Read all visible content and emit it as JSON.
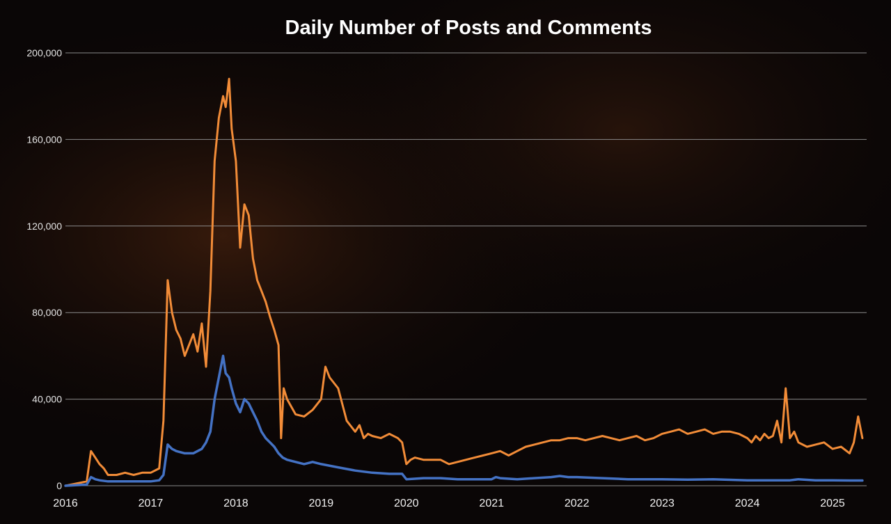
{
  "chart_data": {
    "type": "line",
    "title": "Daily Number of Posts and Comments",
    "xlabel": "",
    "ylabel": "",
    "xlim": [
      2016.0,
      2025.4
    ],
    "ylim": [
      0,
      200000
    ],
    "y_ticks": [
      0,
      40000,
      80000,
      120000,
      160000,
      200000
    ],
    "y_tick_labels": [
      "0",
      "40,000",
      "80,000",
      "120,000",
      "160,000",
      "200,000"
    ],
    "x_ticks": [
      2016,
      2017,
      2018,
      2019,
      2020,
      2021,
      2022,
      2023,
      2024,
      2025
    ],
    "x_tick_labels": [
      "2016",
      "2017",
      "2018",
      "2019",
      "2020",
      "2021",
      "2022",
      "2023",
      "2024",
      "2025"
    ],
    "grid": true,
    "legend": "none",
    "colors": {
      "background": "#0a0606",
      "grid": "#8a8a8a"
    },
    "series": [
      {
        "color": "#f28c38",
        "x": [
          2016.0,
          2016.25,
          2016.3,
          2016.35,
          2016.4,
          2016.45,
          2016.5,
          2016.6,
          2016.7,
          2016.8,
          2016.9,
          2017.0,
          2017.1,
          2017.15,
          2017.2,
          2017.25,
          2017.3,
          2017.35,
          2017.4,
          2017.45,
          2017.5,
          2017.55,
          2017.6,
          2017.65,
          2017.7,
          2017.75,
          2017.8,
          2017.85,
          2017.88,
          2017.92,
          2017.95,
          2018.0,
          2018.05,
          2018.1,
          2018.15,
          2018.2,
          2018.25,
          2018.3,
          2018.35,
          2018.4,
          2018.45,
          2018.5,
          2018.53,
          2018.56,
          2018.6,
          2018.7,
          2018.8,
          2018.9,
          2019.0,
          2019.05,
          2019.1,
          2019.2,
          2019.3,
          2019.4,
          2019.45,
          2019.5,
          2019.55,
          2019.6,
          2019.7,
          2019.8,
          2019.9,
          2019.95,
          2020.0,
          2020.05,
          2020.1,
          2020.2,
          2020.3,
          2020.4,
          2020.5,
          2020.6,
          2020.7,
          2020.8,
          2020.9,
          2021.0,
          2021.1,
          2021.2,
          2021.3,
          2021.4,
          2021.5,
          2021.6,
          2021.7,
          2021.8,
          2021.9,
          2022.0,
          2022.1,
          2022.2,
          2022.3,
          2022.4,
          2022.5,
          2022.6,
          2022.7,
          2022.8,
          2022.9,
          2023.0,
          2023.1,
          2023.2,
          2023.3,
          2023.4,
          2023.5,
          2023.6,
          2023.7,
          2023.8,
          2023.9,
          2024.0,
          2024.05,
          2024.1,
          2024.15,
          2024.2,
          2024.25,
          2024.3,
          2024.35,
          2024.4,
          2024.45,
          2024.5,
          2024.55,
          2024.6,
          2024.7,
          2024.8,
          2024.9,
          2025.0,
          2025.1,
          2025.2,
          2025.25,
          2025.3,
          2025.35
        ],
        "y": [
          0,
          2000,
          16000,
          13000,
          10000,
          8000,
          5000,
          5000,
          6000,
          5000,
          6000,
          6000,
          8000,
          30000,
          95000,
          80000,
          72000,
          68000,
          60000,
          65000,
          70000,
          62000,
          75000,
          55000,
          90000,
          150000,
          170000,
          180000,
          175000,
          188000,
          165000,
          150000,
          110000,
          130000,
          125000,
          105000,
          95000,
          90000,
          85000,
          78000,
          72000,
          65000,
          22000,
          45000,
          40000,
          33000,
          32000,
          35000,
          40000,
          55000,
          50000,
          45000,
          30000,
          25000,
          28000,
          22000,
          24000,
          23000,
          22000,
          24000,
          22000,
          20000,
          10000,
          12000,
          13000,
          12000,
          12000,
          12000,
          10000,
          11000,
          12000,
          13000,
          14000,
          15000,
          16000,
          14000,
          16000,
          18000,
          19000,
          20000,
          21000,
          21000,
          22000,
          22000,
          21000,
          22000,
          23000,
          22000,
          21000,
          22000,
          23000,
          21000,
          22000,
          24000,
          25000,
          26000,
          24000,
          25000,
          26000,
          24000,
          25000,
          25000,
          24000,
          22000,
          20000,
          23000,
          21000,
          24000,
          22000,
          23000,
          30000,
          20000,
          45000,
          22000,
          25000,
          20000,
          18000,
          19000,
          20000,
          17000,
          18000,
          15000,
          20000,
          32000,
          22000
        ]
      },
      {
        "color": "#4472c4",
        "x": [
          2016.0,
          2016.25,
          2016.3,
          2016.35,
          2016.4,
          2016.5,
          2016.6,
          2016.8,
          2017.0,
          2017.1,
          2017.15,
          2017.2,
          2017.25,
          2017.3,
          2017.4,
          2017.5,
          2017.6,
          2017.65,
          2017.7,
          2017.75,
          2017.8,
          2017.85,
          2017.88,
          2017.92,
          2017.95,
          2018.0,
          2018.05,
          2018.1,
          2018.15,
          2018.2,
          2018.25,
          2018.3,
          2018.35,
          2018.4,
          2018.45,
          2018.5,
          2018.55,
          2018.6,
          2018.7,
          2018.8,
          2018.9,
          2019.0,
          2019.2,
          2019.4,
          2019.6,
          2019.8,
          2019.95,
          2020.0,
          2020.2,
          2020.4,
          2020.6,
          2020.8,
          2021.0,
          2021.05,
          2021.1,
          2021.3,
          2021.5,
          2021.7,
          2021.8,
          2021.9,
          2022.0,
          2022.3,
          2022.6,
          2023.0,
          2023.3,
          2023.6,
          2024.0,
          2024.3,
          2024.5,
          2024.6,
          2024.8,
          2025.0,
          2025.2,
          2025.35
        ],
        "y": [
          0,
          500,
          4000,
          3000,
          2500,
          2000,
          2000,
          2000,
          2000,
          2500,
          5000,
          19000,
          17000,
          16000,
          15000,
          15000,
          17000,
          20000,
          25000,
          40000,
          50000,
          60000,
          52000,
          50000,
          45000,
          38000,
          34000,
          40000,
          38000,
          34000,
          30000,
          25000,
          22000,
          20000,
          18000,
          15000,
          13000,
          12000,
          11000,
          10000,
          11000,
          10000,
          8500,
          7000,
          6000,
          5500,
          5500,
          3000,
          3500,
          3500,
          3000,
          3000,
          3000,
          4000,
          3500,
          3000,
          3500,
          4000,
          4500,
          4000,
          4000,
          3500,
          3000,
          3000,
          2800,
          3000,
          2500,
          2500,
          2500,
          3000,
          2500,
          2500,
          2400,
          2400
        ]
      }
    ]
  }
}
